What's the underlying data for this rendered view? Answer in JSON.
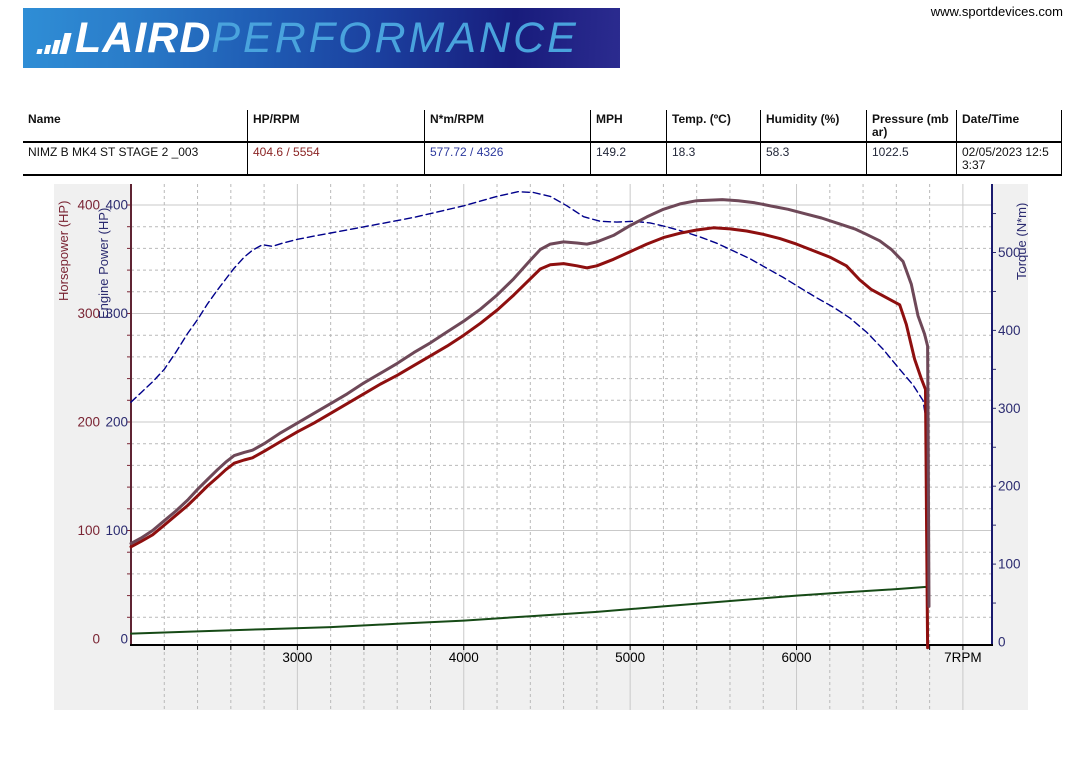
{
  "site_link": "www.sportdevices.com",
  "logo": {
    "brand_bold": "LAIRD",
    "brand_light": "PERFORMANCE"
  },
  "results_table": {
    "columns": [
      "Name",
      "HP/RPM",
      "N*m/RPM",
      "MPH",
      "Temp. (ºC)",
      "Humidity (%)",
      "Pressure (mbar)",
      "Date/Time"
    ],
    "row": {
      "name": "NIMZ B MK4 ST STAGE 2 _003",
      "hp_rpm": "404.6 / 5554",
      "nm_rpm": "577.72 / 4326",
      "mph": "149.2",
      "temp_c": "18.3",
      "humidity_pct": "58.3",
      "pressure_mbar": "1022.5",
      "datetime": "02/05/2023 12:53:37"
    }
  },
  "chart_data": {
    "type": "line",
    "x_range": [
      2000,
      7175
    ],
    "x_ticks": [
      3000,
      4000,
      5000,
      6000
    ],
    "x_end_label": "7RPM",
    "grid": "solid major, dashed minor (200 RPM / 20 HP)",
    "left_axis": {
      "labels": [
        "Horsepower (HP)",
        "Engine Power (HP)"
      ],
      "ticks": [
        0,
        100,
        200,
        300,
        400
      ],
      "range": [
        0,
        420
      ],
      "hp_color": "#7a2433",
      "engine_color": "#2b2b70"
    },
    "right_axis": {
      "label": "Torque (N*m)",
      "ticks": [
        0,
        100,
        200,
        300,
        400,
        500
      ],
      "range": [
        0,
        588
      ],
      "color": "#2b2b70"
    },
    "series": [
      {
        "name": "speed",
        "axis": "hp",
        "color": "#164a16",
        "width": 2,
        "dash": "",
        "points": [
          [
            2000,
            5
          ],
          [
            2400,
            7
          ],
          [
            2800,
            9
          ],
          [
            3200,
            11
          ],
          [
            3600,
            14
          ],
          [
            4000,
            17
          ],
          [
            4400,
            21
          ],
          [
            4800,
            25
          ],
          [
            5200,
            30
          ],
          [
            5600,
            35
          ],
          [
            6000,
            40
          ],
          [
            6300,
            43
          ],
          [
            6600,
            46
          ],
          [
            6780,
            48
          ],
          [
            6786,
            47
          ],
          [
            6790,
            0
          ]
        ]
      },
      {
        "name": "torque",
        "axis": "torque",
        "color": "#00008b",
        "width": 1.4,
        "dash": "7 4",
        "points": [
          [
            2000,
            308
          ],
          [
            2060,
            320
          ],
          [
            2130,
            334
          ],
          [
            2200,
            350
          ],
          [
            2270,
            372
          ],
          [
            2340,
            396
          ],
          [
            2400,
            414
          ],
          [
            2460,
            434
          ],
          [
            2520,
            452
          ],
          [
            2570,
            466
          ],
          [
            2620,
            480
          ],
          [
            2680,
            494
          ],
          [
            2730,
            503
          ],
          [
            2790,
            510
          ],
          [
            2850,
            508
          ],
          [
            2910,
            512
          ],
          [
            3000,
            517
          ],
          [
            3100,
            521
          ],
          [
            3200,
            525
          ],
          [
            3300,
            529
          ],
          [
            3400,
            533
          ],
          [
            3500,
            537
          ],
          [
            3600,
            541
          ],
          [
            3700,
            545
          ],
          [
            3800,
            550
          ],
          [
            3900,
            555
          ],
          [
            4000,
            560
          ],
          [
            4100,
            566
          ],
          [
            4200,
            572
          ],
          [
            4326,
            578
          ],
          [
            4420,
            577
          ],
          [
            4520,
            572
          ],
          [
            4620,
            560
          ],
          [
            4720,
            546
          ],
          [
            4820,
            540
          ],
          [
            4920,
            539
          ],
          [
            5020,
            540
          ],
          [
            5120,
            538
          ],
          [
            5220,
            533
          ],
          [
            5320,
            527
          ],
          [
            5420,
            520
          ],
          [
            5520,
            512
          ],
          [
            5620,
            502
          ],
          [
            5720,
            492
          ],
          [
            5820,
            480
          ],
          [
            5920,
            468
          ],
          [
            6020,
            455
          ],
          [
            6120,
            442
          ],
          [
            6220,
            430
          ],
          [
            6320,
            416
          ],
          [
            6420,
            398
          ],
          [
            6520,
            376
          ],
          [
            6620,
            350
          ],
          [
            6700,
            330
          ],
          [
            6760,
            310
          ],
          [
            6775,
            290
          ],
          [
            6785,
            150
          ]
        ]
      },
      {
        "name": "wheel-power",
        "axis": "hp",
        "color": "#8e0f0f",
        "width": 3,
        "dash": "",
        "points": [
          [
            2000,
            85
          ],
          [
            2060,
            90
          ],
          [
            2130,
            96
          ],
          [
            2200,
            105
          ],
          [
            2270,
            114
          ],
          [
            2340,
            123
          ],
          [
            2400,
            132
          ],
          [
            2460,
            141
          ],
          [
            2520,
            149
          ],
          [
            2570,
            156
          ],
          [
            2620,
            162
          ],
          [
            2680,
            165
          ],
          [
            2730,
            167
          ],
          [
            2800,
            173
          ],
          [
            2900,
            182
          ],
          [
            3000,
            191
          ],
          [
            3100,
            199
          ],
          [
            3200,
            208
          ],
          [
            3300,
            217
          ],
          [
            3400,
            226
          ],
          [
            3500,
            235
          ],
          [
            3600,
            243
          ],
          [
            3700,
            252
          ],
          [
            3800,
            261
          ],
          [
            3900,
            270
          ],
          [
            4000,
            280
          ],
          [
            4100,
            291
          ],
          [
            4200,
            303
          ],
          [
            4300,
            317
          ],
          [
            4400,
            332
          ],
          [
            4460,
            341
          ],
          [
            4520,
            345
          ],
          [
            4600,
            346
          ],
          [
            4680,
            344
          ],
          [
            4740,
            342
          ],
          [
            4800,
            344
          ],
          [
            4900,
            350
          ],
          [
            5000,
            357
          ],
          [
            5100,
            364
          ],
          [
            5200,
            370
          ],
          [
            5300,
            374
          ],
          [
            5400,
            377
          ],
          [
            5500,
            379
          ],
          [
            5600,
            378
          ],
          [
            5700,
            376
          ],
          [
            5800,
            373
          ],
          [
            5900,
            369
          ],
          [
            6000,
            364
          ],
          [
            6100,
            358
          ],
          [
            6200,
            352
          ],
          [
            6300,
            344
          ],
          [
            6380,
            331
          ],
          [
            6450,
            322
          ],
          [
            6560,
            313
          ],
          [
            6620,
            308
          ],
          [
            6660,
            290
          ],
          [
            6710,
            258
          ],
          [
            6750,
            240
          ],
          [
            6775,
            230
          ],
          [
            6782,
            100
          ],
          [
            6788,
            -8
          ]
        ]
      },
      {
        "name": "engine-power",
        "axis": "hp",
        "color": "#6e4858",
        "width": 3,
        "dash": "",
        "points": [
          [
            2000,
            88
          ],
          [
            2060,
            93
          ],
          [
            2130,
            100
          ],
          [
            2200,
            109
          ],
          [
            2270,
            118
          ],
          [
            2340,
            128
          ],
          [
            2400,
            138
          ],
          [
            2460,
            147
          ],
          [
            2520,
            156
          ],
          [
            2570,
            163
          ],
          [
            2620,
            169
          ],
          [
            2680,
            172
          ],
          [
            2730,
            174
          ],
          [
            2800,
            180
          ],
          [
            2900,
            190
          ],
          [
            3000,
            199
          ],
          [
            3100,
            208
          ],
          [
            3200,
            217
          ],
          [
            3300,
            226
          ],
          [
            3400,
            236
          ],
          [
            3500,
            245
          ],
          [
            3600,
            254
          ],
          [
            3700,
            264
          ],
          [
            3800,
            273
          ],
          [
            3900,
            283
          ],
          [
            4000,
            293
          ],
          [
            4100,
            304
          ],
          [
            4200,
            317
          ],
          [
            4300,
            332
          ],
          [
            4400,
            349
          ],
          [
            4460,
            359
          ],
          [
            4520,
            364
          ],
          [
            4600,
            366
          ],
          [
            4680,
            365
          ],
          [
            4740,
            364
          ],
          [
            4800,
            366
          ],
          [
            4900,
            372
          ],
          [
            5000,
            381
          ],
          [
            5100,
            389
          ],
          [
            5200,
            396
          ],
          [
            5300,
            401
          ],
          [
            5400,
            404
          ],
          [
            5554,
            405
          ],
          [
            5650,
            404
          ],
          [
            5750,
            402
          ],
          [
            5850,
            399
          ],
          [
            5950,
            396
          ],
          [
            6050,
            392
          ],
          [
            6150,
            388
          ],
          [
            6250,
            383
          ],
          [
            6350,
            378
          ],
          [
            6420,
            373
          ],
          [
            6500,
            367
          ],
          [
            6570,
            359
          ],
          [
            6640,
            348
          ],
          [
            6690,
            327
          ],
          [
            6730,
            298
          ],
          [
            6770,
            281
          ],
          [
            6788,
            270
          ],
          [
            6792,
            160
          ],
          [
            6796,
            30
          ]
        ]
      }
    ]
  }
}
